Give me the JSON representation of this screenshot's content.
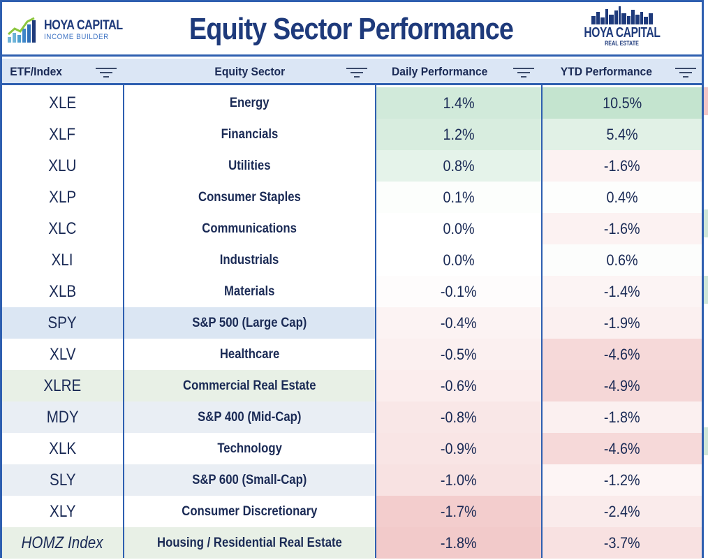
{
  "header": {
    "title": "Equity Sector Performance",
    "logo_left_line1": "HOYA CAPITAL",
    "logo_left_line2": "INCOME BUILDER",
    "logo_right_line1": "HOYA CAPITAL",
    "logo_right_line2": "REAL ESTATE"
  },
  "columns": [
    {
      "label": "ETF/Index"
    },
    {
      "label": "Equity Sector"
    },
    {
      "label": "Daily Performance"
    },
    {
      "label": "YTD Performance"
    }
  ],
  "rows": [
    {
      "ticker": "XLE",
      "sector": "Energy",
      "daily": "1.4%",
      "ytd": "10.5%",
      "daily_value": 1.4,
      "ytd_value": 10.5,
      "row_bg": "#ffffff"
    },
    {
      "ticker": "XLF",
      "sector": "Financials",
      "daily": "1.2%",
      "ytd": "5.4%",
      "daily_value": 1.2,
      "ytd_value": 5.4,
      "row_bg": "#ffffff"
    },
    {
      "ticker": "XLU",
      "sector": "Utilities",
      "daily": "0.8%",
      "ytd": "-1.6%",
      "daily_value": 0.8,
      "ytd_value": -1.6,
      "row_bg": "#ffffff"
    },
    {
      "ticker": "XLP",
      "sector": "Consumer Staples",
      "daily": "0.1%",
      "ytd": "0.4%",
      "daily_value": 0.1,
      "ytd_value": 0.4,
      "row_bg": "#ffffff"
    },
    {
      "ticker": "XLC",
      "sector": "Communications",
      "daily": "0.0%",
      "ytd": "-1.6%",
      "daily_value": 0.0,
      "ytd_value": -1.6,
      "row_bg": "#ffffff"
    },
    {
      "ticker": "XLI",
      "sector": "Industrials",
      "daily": "0.0%",
      "ytd": "0.6%",
      "daily_value": 0.0,
      "ytd_value": 0.6,
      "row_bg": "#ffffff"
    },
    {
      "ticker": "XLB",
      "sector": "Materials",
      "daily": "-0.1%",
      "ytd": "-1.4%",
      "daily_value": -0.1,
      "ytd_value": -1.4,
      "row_bg": "#ffffff"
    },
    {
      "ticker": "SPY",
      "sector": "S&P 500 (Large Cap)",
      "daily": "-0.4%",
      "ytd": "-1.9%",
      "daily_value": -0.4,
      "ytd_value": -1.9,
      "row_bg": "#dbe6f3"
    },
    {
      "ticker": "XLV",
      "sector": "Healthcare",
      "daily": "-0.5%",
      "ytd": "-4.6%",
      "daily_value": -0.5,
      "ytd_value": -4.6,
      "row_bg": "#ffffff"
    },
    {
      "ticker": "XLRE",
      "sector": "Commercial Real Estate",
      "daily": "-0.6%",
      "ytd": "-4.9%",
      "daily_value": -0.6,
      "ytd_value": -4.9,
      "row_bg": "#e8f0e6"
    },
    {
      "ticker": "MDY",
      "sector": "S&P 400 (Mid-Cap)",
      "daily": "-0.8%",
      "ytd": "-1.8%",
      "daily_value": -0.8,
      "ytd_value": -1.8,
      "row_bg": "#e9eef4"
    },
    {
      "ticker": "XLK",
      "sector": "Technology",
      "daily": "-0.9%",
      "ytd": "-4.6%",
      "daily_value": -0.9,
      "ytd_value": -4.6,
      "row_bg": "#ffffff"
    },
    {
      "ticker": "SLY",
      "sector": "S&P 600 (Small-Cap)",
      "daily": "-1.0%",
      "ytd": "-1.2%",
      "daily_value": -1.0,
      "ytd_value": -1.2,
      "row_bg": "#e9eef4"
    },
    {
      "ticker": "XLY",
      "sector": "Consumer Discretionary",
      "daily": "-1.7%",
      "ytd": "-2.4%",
      "daily_value": -1.7,
      "ytd_value": -2.4,
      "row_bg": "#ffffff"
    },
    {
      "ticker": "HOMZ Index",
      "sector": "Housing / Residential Real Estate",
      "daily": "-1.8%",
      "ytd": "-3.7%",
      "daily_value": -1.8,
      "ytd_value": -3.7,
      "row_bg": "#e8f0e6",
      "italic": true
    }
  ],
  "colors": {
    "border": "#2e5fb0",
    "navy": "#1e3a7b",
    "header_bg": "#dbe6f5",
    "positive": "#c9e7d4",
    "negative": "#f2c6c6"
  },
  "icons": [
    "logo-chart-icon",
    "skyline-icon",
    "filter-icon"
  ]
}
